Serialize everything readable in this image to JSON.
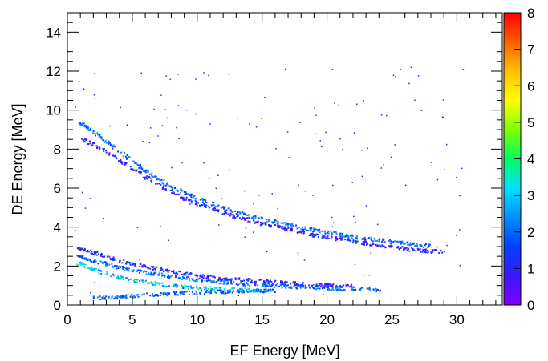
{
  "chart_data": {
    "type": "heatmap",
    "title": "",
    "xlabel": "EF Energy [MeV]",
    "ylabel": "DE Energy [MeV]",
    "xlim": [
      0,
      33.5
    ],
    "ylim": [
      0,
      15
    ],
    "x_ticks": [
      0,
      5,
      10,
      15,
      20,
      25,
      30
    ],
    "y_ticks": [
      0,
      2,
      4,
      6,
      8,
      10,
      12,
      14
    ],
    "zlim": [
      0,
      8
    ],
    "z_ticks": [
      0,
      1,
      2,
      3,
      4,
      5,
      6,
      7,
      8
    ],
    "grid": false,
    "colorscale": [
      "#7f00ff",
      "#3a18ff",
      "#0040ff",
      "#0090ff",
      "#00e0ff",
      "#00ff60",
      "#80ff00",
      "#ffff00",
      "#ffc000",
      "#ff6000",
      "#ff0000"
    ],
    "bands": [
      {
        "points": [
          [
            0.8,
            9.4
          ],
          [
            2,
            8.9
          ],
          [
            4,
            7.9
          ],
          [
            6,
            6.9
          ],
          [
            8,
            6.1
          ],
          [
            10,
            5.5
          ],
          [
            12,
            5.0
          ],
          [
            14,
            4.6
          ],
          [
            16,
            4.3
          ],
          [
            18,
            4.0
          ],
          [
            20,
            3.75
          ],
          [
            22,
            3.55
          ],
          [
            24,
            3.35
          ],
          [
            26,
            3.2
          ],
          [
            28,
            3.05
          ]
        ],
        "counts": 2
      },
      {
        "points": [
          [
            1,
            8.6
          ],
          [
            3,
            7.9
          ],
          [
            5,
            7.0
          ],
          [
            7,
            6.2
          ],
          [
            9,
            5.5
          ],
          [
            11,
            5.0
          ],
          [
            13,
            4.55
          ],
          [
            15,
            4.2
          ],
          [
            17,
            3.9
          ],
          [
            19,
            3.6
          ],
          [
            21,
            3.4
          ],
          [
            23,
            3.2
          ],
          [
            25,
            3.0
          ],
          [
            27,
            2.85
          ],
          [
            29,
            2.75
          ]
        ],
        "counts": 1
      },
      {
        "points": [
          [
            0.7,
            3.0
          ],
          [
            2,
            2.7
          ],
          [
            4,
            2.3
          ],
          [
            6,
            2.0
          ],
          [
            8,
            1.75
          ],
          [
            10,
            1.55
          ],
          [
            12,
            1.4
          ],
          [
            14,
            1.3
          ],
          [
            16,
            1.2
          ],
          [
            18,
            1.12
          ],
          [
            20,
            1.05
          ],
          [
            22,
            1.0
          ]
        ],
        "counts": 1
      },
      {
        "points": [
          [
            0.7,
            2.6
          ],
          [
            2,
            2.3
          ],
          [
            4,
            1.95
          ],
          [
            6,
            1.7
          ],
          [
            8,
            1.5
          ],
          [
            10,
            1.33
          ],
          [
            12,
            1.2
          ],
          [
            14,
            1.1
          ],
          [
            16,
            1.02
          ],
          [
            18,
            0.96
          ],
          [
            20,
            0.9
          ],
          [
            22,
            0.85
          ],
          [
            24,
            0.82
          ]
        ],
        "counts": 2
      },
      {
        "points": [
          [
            0.7,
            2.2
          ],
          [
            2,
            1.85
          ],
          [
            4,
            1.45
          ],
          [
            6,
            1.2
          ],
          [
            8,
            1.02
          ],
          [
            10,
            0.92
          ],
          [
            12,
            0.85
          ],
          [
            14,
            0.8
          ],
          [
            16,
            0.75
          ]
        ],
        "counts": 3
      },
      {
        "points": [
          [
            2,
            0.4
          ],
          [
            4,
            0.45
          ],
          [
            6,
            0.55
          ],
          [
            8,
            0.62
          ],
          [
            10,
            0.68
          ],
          [
            12,
            0.72
          ],
          [
            14,
            0.75
          ],
          [
            16,
            0.78
          ]
        ],
        "counts": 2
      }
    ]
  }
}
